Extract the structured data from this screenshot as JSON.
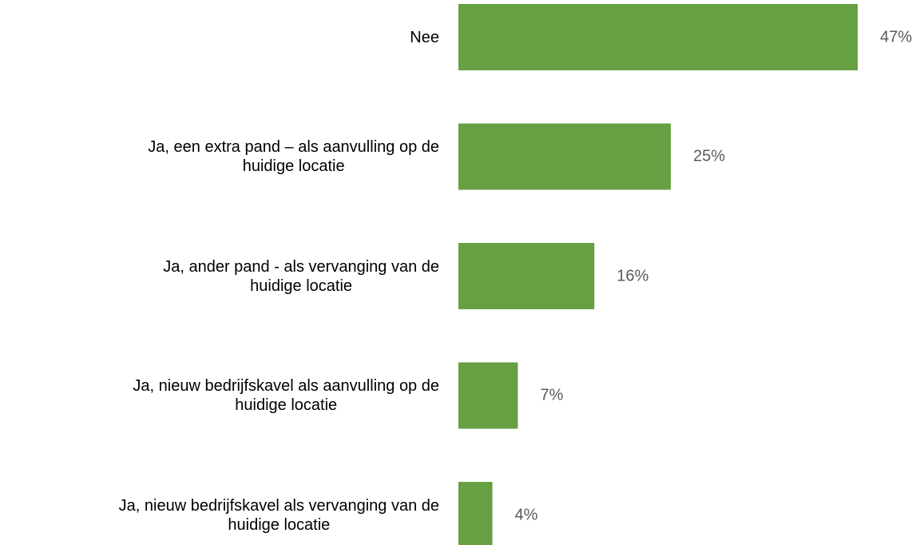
{
  "chart_data": {
    "type": "bar",
    "orientation": "horizontal",
    "categories": [
      "Nee",
      "Ja, een extra pand – als aanvulling op de\nhuidige locatie",
      "Ja, ander pand - als vervanging van de\nhuidige locatie",
      "Ja, nieuw bedrijfskavel als aanvulling op de\nhuidige locatie",
      "Ja, nieuw bedrijfskavel als vervanging van de\nhuidige locatie"
    ],
    "values": [
      47,
      25,
      16,
      7,
      4
    ],
    "value_labels": [
      "47%",
      "25%",
      "16%",
      "7%",
      "4%"
    ],
    "color": "#66a043"
  }
}
